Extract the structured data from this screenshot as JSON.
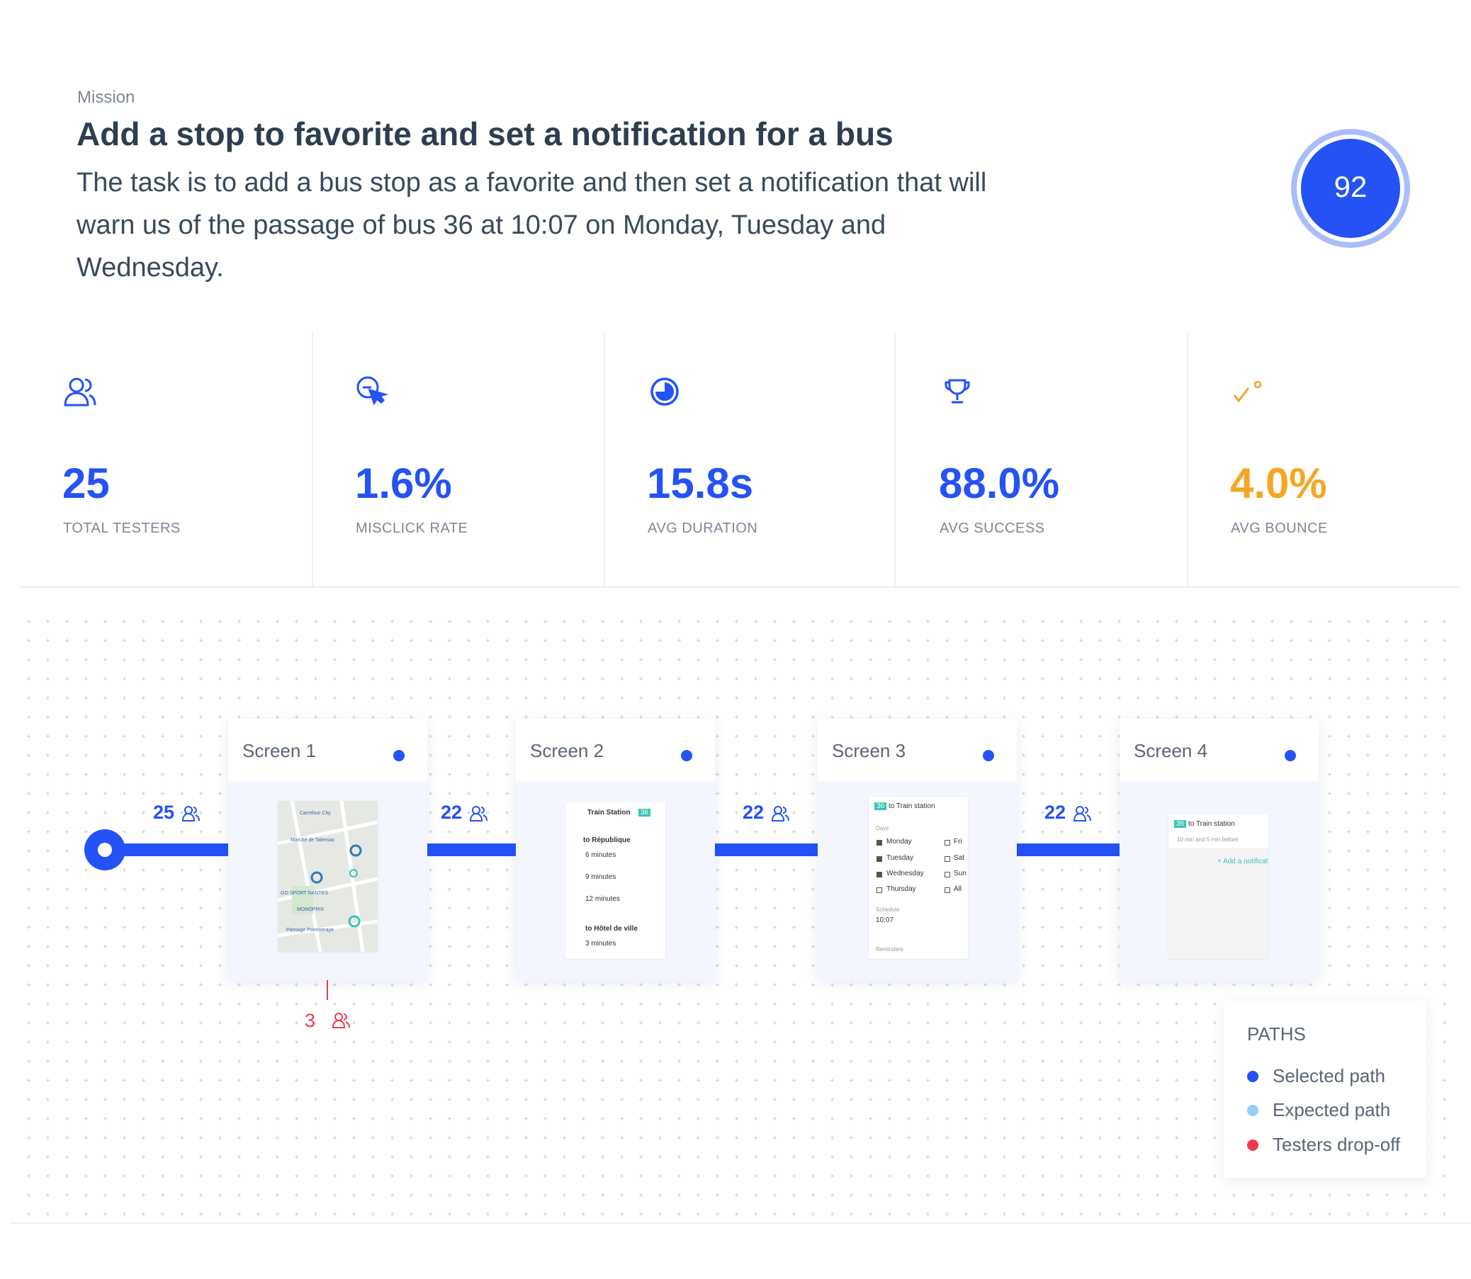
{
  "header": {
    "label": "Mission",
    "title": "Add a stop to favorite and set a notification for a bus",
    "description": "The task is to add a bus stop as a favorite and then set a notification that will warn us of the passage of bus 36 at 10:07 on Monday, Tuesday and Wednesday."
  },
  "score": "92",
  "stats": [
    {
      "value": "25",
      "label": "TOTAL TESTERS"
    },
    {
      "value": "1.6%",
      "label": "MISCLICK RATE"
    },
    {
      "value": "15.8s",
      "label": "AVG DURATION"
    },
    {
      "value": "88.0%",
      "label": "AVG SUCCESS"
    },
    {
      "value": "4.0%",
      "label": "AVG BOUNCE"
    }
  ],
  "flow": {
    "screens": [
      {
        "name": "Screen 1",
        "testers": "25",
        "preview": [
          "Carrefour City",
          "Marché de Talensac",
          "GO SPORT NANTES",
          "MONOPRIX",
          "Passage Pommeraye"
        ]
      },
      {
        "name": "Screen 2",
        "testers": "22",
        "preview": [
          "Train Station",
          "36",
          "to République",
          "6 minutes",
          "9 minutes",
          "12 minutes",
          "to Hôtel de ville",
          "3 minutes"
        ]
      },
      {
        "name": "Screen 3",
        "testers": "22",
        "preview": [
          "36",
          "to Train station",
          "Days",
          "Monday",
          "Tuesday",
          "Wednesday",
          "Thursday",
          "Fri",
          "Sat",
          "Sun",
          "All",
          "Schedule",
          "10:07",
          "Reminders"
        ]
      },
      {
        "name": "Screen 4",
        "testers": "22",
        "preview": [
          "36",
          "to Train station",
          "10 min and 5 min before",
          "+ Add a notificat"
        ]
      }
    ],
    "dropoff": "3"
  },
  "legend": {
    "title": "PATHS",
    "items": [
      "Selected path",
      "Expected path",
      "Testers drop-off"
    ]
  }
}
